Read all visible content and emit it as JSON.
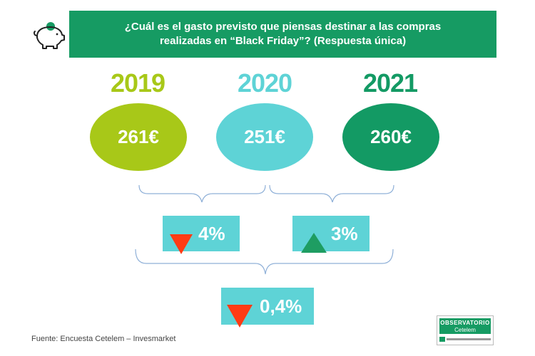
{
  "header": {
    "line1": "¿Cuál es el gasto previsto que piensas destinar a las compras",
    "line2": "realizadas en “Black Friday”?  (Respuesta única)"
  },
  "colors": {
    "header_green": "#169b63",
    "lime": "#a8c818",
    "cyan": "#5ed3d6",
    "dark_green": "#139a64",
    "down_arrow": "#ff3b14",
    "up_arrow": "#1e9d62"
  },
  "icons": {
    "piggy_bank": "piggy-bank-icon"
  },
  "chart_data": {
    "type": "table",
    "categories": [
      "2019",
      "2020",
      "2021"
    ],
    "values": [
      261,
      251,
      260
    ],
    "value_labels": [
      "261€",
      "251€",
      "260€"
    ],
    "unit": "€",
    "changes": [
      {
        "from": "2019",
        "to": "2020",
        "label": "4%",
        "direction": "down"
      },
      {
        "from": "2020",
        "to": "2021",
        "label": "3%",
        "direction": "up"
      },
      {
        "from": "2019",
        "to": "2021",
        "label": "0,4%",
        "direction": "down"
      }
    ]
  },
  "source": "Fuente: Encuesta Cetelem – Invesmarket",
  "logo": {
    "line1": "OBSERVATORIO",
    "line2": "Cetelem"
  }
}
